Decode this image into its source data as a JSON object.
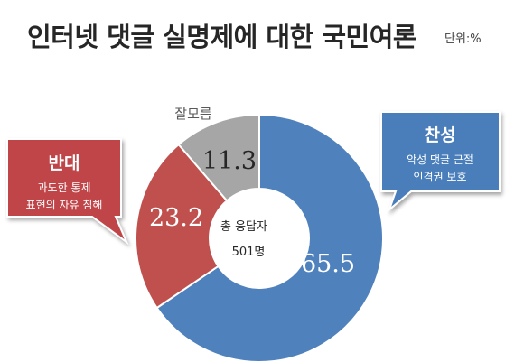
{
  "title": "인터넷 댓글 실명제에 대한 국민여론",
  "unit": "단위:%",
  "center_label": {
    "line1": "총 응답자",
    "line2": "501명"
  },
  "callouts": {
    "support": {
      "heading": "찬성",
      "line1": "악성 댓글 근절",
      "line2": "인격권 보호"
    },
    "oppose": {
      "heading": "반대",
      "line1": "과도한 통제",
      "line2": "표현의 자유 침해"
    }
  },
  "colors": {
    "support": "#4f81bd",
    "oppose": "#c0504d",
    "unknown": "#a6a6a6",
    "support_box": "#4a7ebb",
    "oppose_box": "#c0454a"
  },
  "chart_data": {
    "type": "pie",
    "title": "인터넷 댓글 실명제에 대한 국민여론",
    "unit": "단위:%",
    "categories": [
      "찬성",
      "반대",
      "잘모름"
    ],
    "values": [
      65.5,
      23.2,
      11.3
    ],
    "value_labels": [
      "65.5",
      "23.2",
      "11.3"
    ],
    "style": "doughnut"
  }
}
